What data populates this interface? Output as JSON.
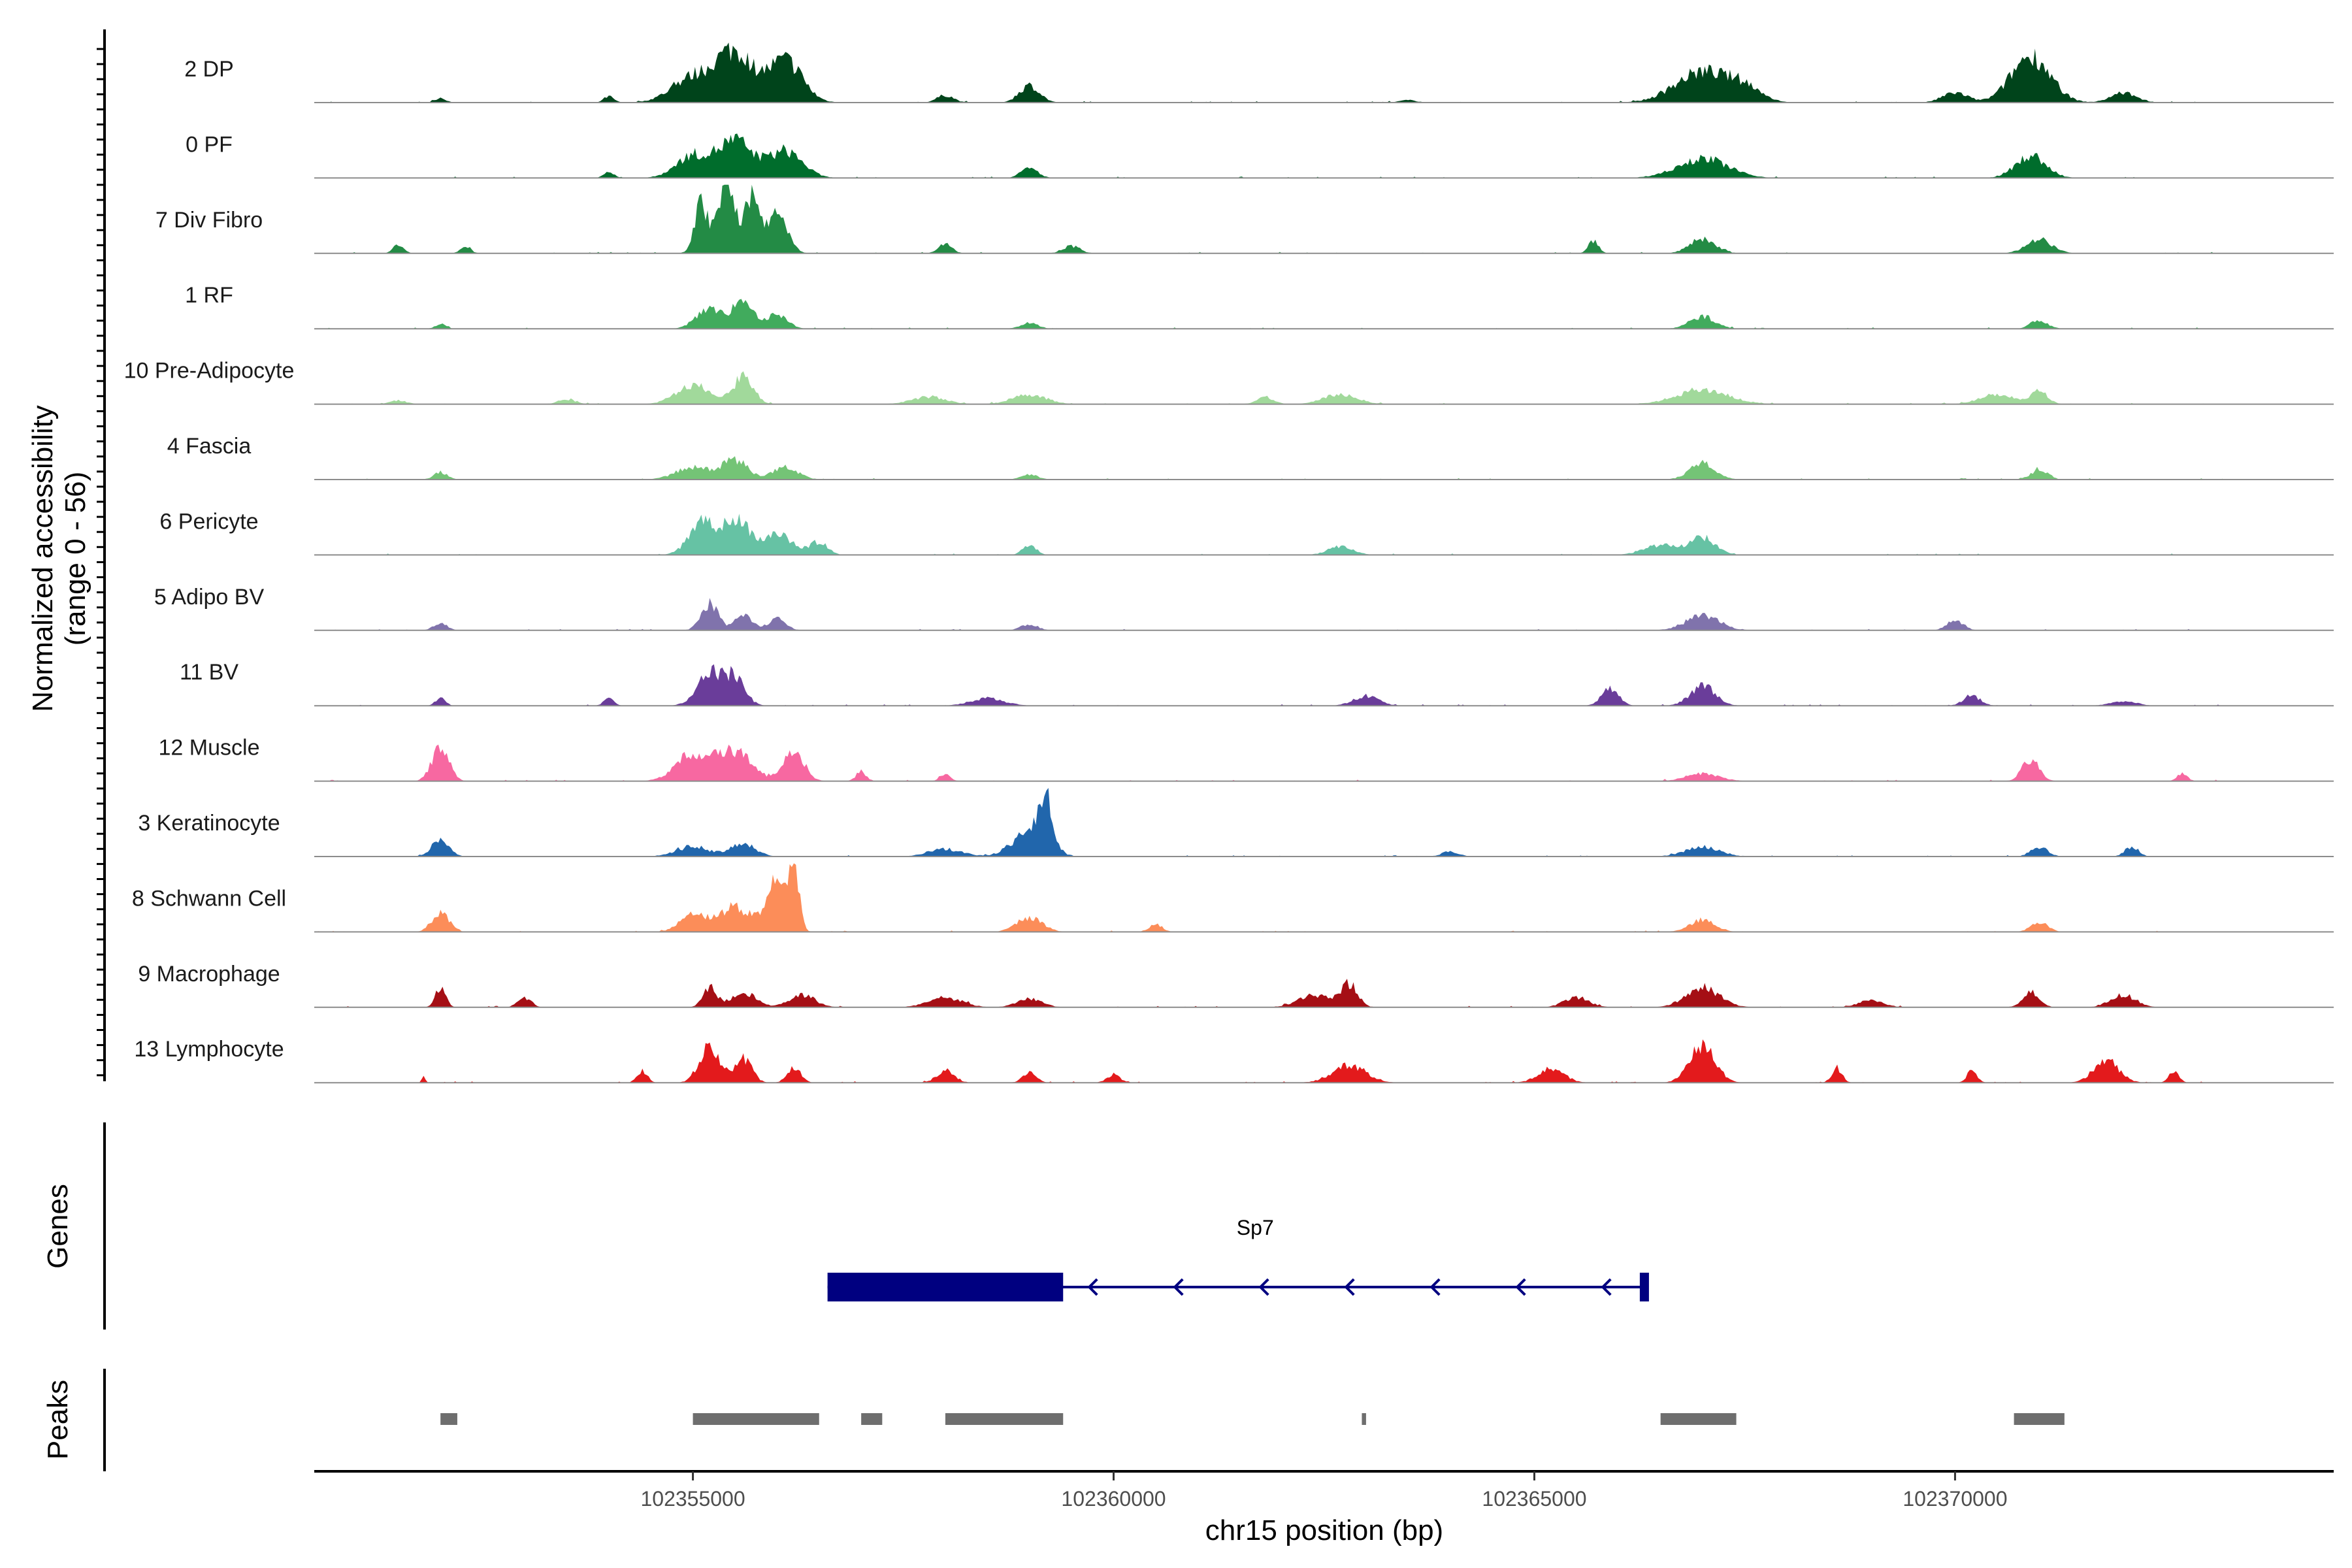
{
  "chart_data": {
    "type": "area",
    "chromosome": "chr15",
    "xlabel": "chr15 position (bp)",
    "ylabel": "Normalized accessibility",
    "ylabel_range": "(range 0 - 56)",
    "ylim": [
      0,
      56
    ],
    "xlim": [
      102350500,
      102374500
    ],
    "x_ticks": [
      102355000,
      102360000,
      102365000,
      102370000
    ],
    "x_tick_labels": [
      "102355000",
      "102360000",
      "102365000",
      "102370000"
    ],
    "grid": false,
    "series": [
      {
        "name": "2 DP",
        "color": "#00441b",
        "peaks": [
          [
            102352000,
            4,
            60
          ],
          [
            102354000,
            5,
            60
          ],
          [
            102355000,
            20,
            250
          ],
          [
            102355500,
            40,
            220
          ],
          [
            102356100,
            34,
            200
          ],
          [
            102358000,
            6,
            100
          ],
          [
            102359000,
            14,
            120
          ],
          [
            102363500,
            2,
            100
          ],
          [
            102367000,
            25,
            320
          ],
          [
            102367500,
            10,
            200
          ],
          [
            102370000,
            8,
            150
          ],
          [
            102370900,
            38,
            230
          ],
          [
            102372000,
            8,
            150
          ]
        ]
      },
      {
        "name": "0 PF",
        "color": "#006d2c",
        "peaks": [
          [
            102354000,
            5,
            60
          ],
          [
            102355000,
            18,
            200
          ],
          [
            102355500,
            30,
            200
          ],
          [
            102356100,
            22,
            200
          ],
          [
            102359000,
            8,
            100
          ],
          [
            102367000,
            16,
            300
          ],
          [
            102370900,
            18,
            180
          ]
        ]
      },
      {
        "name": "7 Div Fibro",
        "color": "#238b45",
        "peaks": [
          [
            102351500,
            8,
            60
          ],
          [
            102352300,
            6,
            60
          ],
          [
            102355100,
            40,
            80
          ],
          [
            102355400,
            56,
            100
          ],
          [
            102355700,
            44,
            90
          ],
          [
            102356000,
            30,
            120
          ],
          [
            102358000,
            8,
            80
          ],
          [
            102359500,
            6,
            100
          ],
          [
            102365700,
            10,
            60
          ],
          [
            102367000,
            12,
            150
          ],
          [
            102371000,
            12,
            150
          ]
        ]
      },
      {
        "name": "1 RF",
        "color": "#41ab5d",
        "peaks": [
          [
            102352000,
            4,
            60
          ],
          [
            102355200,
            18,
            150
          ],
          [
            102355600,
            22,
            120
          ],
          [
            102356000,
            12,
            120
          ],
          [
            102359000,
            5,
            100
          ],
          [
            102367000,
            10,
            150
          ],
          [
            102371000,
            7,
            100
          ]
        ]
      },
      {
        "name": "10 Pre-Adipocyte",
        "color": "#a1d99b",
        "peaks": [
          [
            102351500,
            3,
            100
          ],
          [
            102353500,
            4,
            100
          ],
          [
            102355000,
            16,
            200
          ],
          [
            102355600,
            22,
            120
          ],
          [
            102357800,
            6,
            200
          ],
          [
            102359000,
            8,
            200
          ],
          [
            102361800,
            6,
            100
          ],
          [
            102362700,
            8,
            200
          ],
          [
            102367000,
            12,
            300
          ],
          [
            102370500,
            8,
            200
          ],
          [
            102371000,
            10,
            100
          ]
        ]
      },
      {
        "name": "4 Fascia",
        "color": "#74c476",
        "peaks": [
          [
            102352000,
            6,
            80
          ],
          [
            102355000,
            10,
            200
          ],
          [
            102355500,
            16,
            150
          ],
          [
            102356100,
            10,
            150
          ],
          [
            102359000,
            4,
            100
          ],
          [
            102367000,
            14,
            150
          ],
          [
            102371000,
            8,
            100
          ]
        ]
      },
      {
        "name": "6 Pericyte",
        "color": "#66c2a4",
        "peaks": [
          [
            102355100,
            26,
            150
          ],
          [
            102355500,
            30,
            150
          ],
          [
            102356000,
            16,
            200
          ],
          [
            102356500,
            10,
            100
          ],
          [
            102359000,
            8,
            80
          ],
          [
            102362700,
            7,
            150
          ],
          [
            102366500,
            8,
            200
          ],
          [
            102367000,
            14,
            150
          ]
        ]
      },
      {
        "name": "5 Adipo BV",
        "color": "#8073ac",
        "peaks": [
          [
            102352000,
            6,
            80
          ],
          [
            102355200,
            22,
            100
          ],
          [
            102355600,
            14,
            100
          ],
          [
            102356000,
            10,
            100
          ],
          [
            102359000,
            5,
            100
          ],
          [
            102367000,
            12,
            200
          ],
          [
            102370000,
            8,
            100
          ]
        ]
      },
      {
        "name": "11 BV",
        "color": "#6a3d9a",
        "peaks": [
          [
            102352000,
            6,
            60
          ],
          [
            102354000,
            6,
            60
          ],
          [
            102355200,
            26,
            150
          ],
          [
            102355500,
            22,
            120
          ],
          [
            102358500,
            6,
            200
          ],
          [
            102363000,
            8,
            150
          ],
          [
            102365900,
            14,
            100
          ],
          [
            102367000,
            16,
            150
          ],
          [
            102370200,
            8,
            100
          ],
          [
            102372000,
            4,
            150
          ]
        ]
      },
      {
        "name": "12 Muscle",
        "color": "#f768a1",
        "peaks": [
          [
            102352000,
            28,
            100
          ],
          [
            102355000,
            22,
            200
          ],
          [
            102355500,
            24,
            200
          ],
          [
            102356200,
            26,
            120
          ],
          [
            102357000,
            8,
            60
          ],
          [
            102358000,
            6,
            60
          ],
          [
            102367000,
            6,
            200
          ],
          [
            102370900,
            18,
            100
          ],
          [
            102372700,
            6,
            60
          ]
        ]
      },
      {
        "name": "3 Keratinocyte",
        "color": "#2166ac",
        "peaks": [
          [
            102352000,
            14,
            100
          ],
          [
            102355000,
            8,
            200
          ],
          [
            102355600,
            10,
            150
          ],
          [
            102358000,
            6,
            200
          ],
          [
            102359000,
            20,
            200
          ],
          [
            102359200,
            38,
            80
          ],
          [
            102364000,
            4,
            100
          ],
          [
            102367000,
            8,
            200
          ],
          [
            102371000,
            8,
            100
          ],
          [
            102372100,
            8,
            80
          ]
        ]
      },
      {
        "name": "8 Schwann Cell",
        "color": "#fc8d59",
        "peaks": [
          [
            102352000,
            16,
            100
          ],
          [
            102355000,
            14,
            150
          ],
          [
            102355500,
            20,
            200
          ],
          [
            102356000,
            40,
            120
          ],
          [
            102356200,
            50,
            60
          ],
          [
            102359000,
            12,
            150
          ],
          [
            102360500,
            6,
            80
          ],
          [
            102367000,
            10,
            150
          ],
          [
            102371000,
            8,
            100
          ]
        ]
      },
      {
        "name": "9 Macrophage",
        "color": "#a50f15",
        "peaks": [
          [
            102352000,
            16,
            60
          ],
          [
            102353000,
            8,
            80
          ],
          [
            102355200,
            16,
            80
          ],
          [
            102355600,
            12,
            150
          ],
          [
            102356300,
            10,
            150
          ],
          [
            102358000,
            8,
            200
          ],
          [
            102359000,
            7,
            150
          ],
          [
            102362400,
            10,
            200
          ],
          [
            102362800,
            18,
            100
          ],
          [
            102365500,
            8,
            150
          ],
          [
            102367000,
            16,
            200
          ],
          [
            102369000,
            6,
            150
          ],
          [
            102370900,
            12,
            100
          ],
          [
            102372000,
            10,
            150
          ]
        ]
      },
      {
        "name": "13 Lymphocyte",
        "color": "#e31a1c",
        "peaks": [
          [
            102351800,
            5,
            20
          ],
          [
            102354400,
            10,
            60
          ],
          [
            102355200,
            30,
            120
          ],
          [
            102355600,
            20,
            100
          ],
          [
            102356200,
            12,
            80
          ],
          [
            102358000,
            10,
            100
          ],
          [
            102359000,
            8,
            80
          ],
          [
            102360000,
            6,
            80
          ],
          [
            102362800,
            14,
            200
          ],
          [
            102365200,
            12,
            150
          ],
          [
            102367000,
            30,
            150
          ],
          [
            102368600,
            12,
            60
          ],
          [
            102370200,
            10,
            60
          ],
          [
            102371800,
            18,
            150
          ],
          [
            102372600,
            10,
            60
          ]
        ]
      }
    ],
    "genes": [
      {
        "name": "Sp7",
        "strand": "-",
        "start": 102356600,
        "end": 102366300,
        "thick_start": 102356600,
        "thick_end": 102359400
      }
    ],
    "peaks_track": [
      [
        102352000,
        102352200
      ],
      [
        102355000,
        102356500
      ],
      [
        102357000,
        102357250
      ],
      [
        102358000,
        102359400
      ],
      [
        102362950,
        102363000
      ],
      [
        102366500,
        102367400
      ],
      [
        102370700,
        102371300
      ]
    ],
    "panel_labels": {
      "genes": "Genes",
      "peaks": "Peaks"
    }
  },
  "colors": {
    "gene": "#000080",
    "peak_box": "#6e6e6e",
    "baseline": "#8c8c8c"
  }
}
